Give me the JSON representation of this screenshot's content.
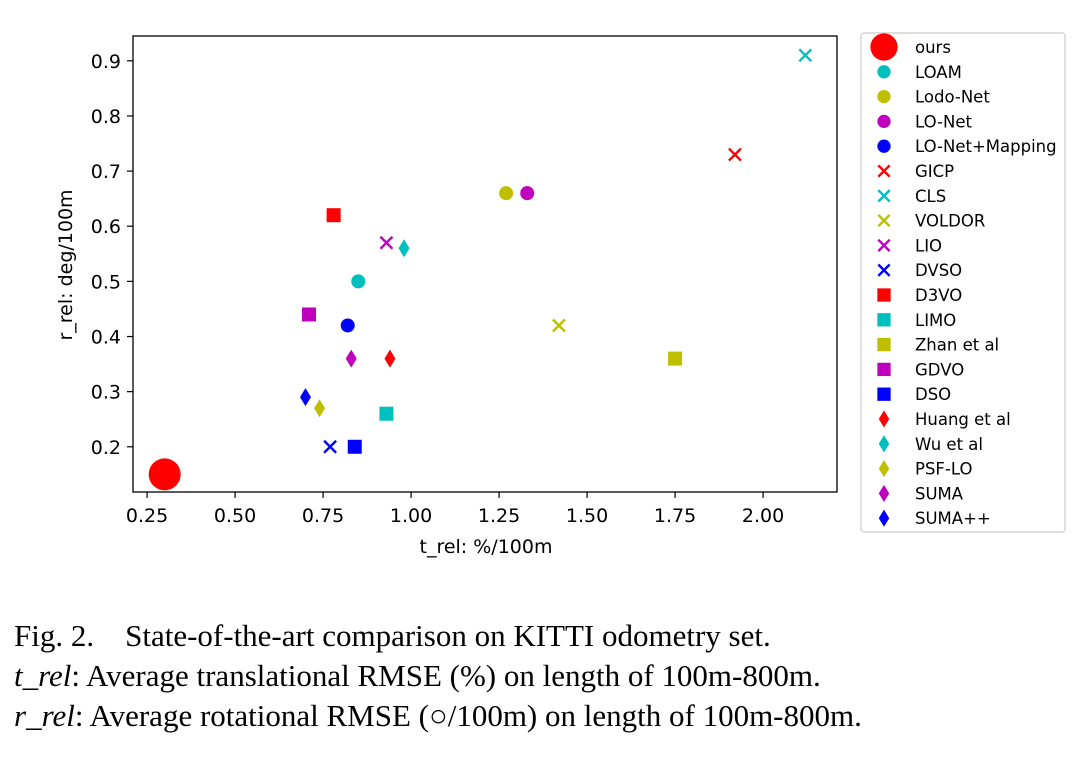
{
  "chart_data": {
    "type": "scatter",
    "title": "",
    "xlabel": "t_rel: %/100m",
    "ylabel": "r_rel: deg/100m",
    "xlim": [
      0.21,
      2.21
    ],
    "ylim": [
      0.118,
      0.945
    ],
    "xticks": [
      0.25,
      0.5,
      0.75,
      1.0,
      1.25,
      1.5,
      1.75,
      2.0
    ],
    "xtick_labels": [
      "0.25",
      "0.50",
      "0.75",
      "1.00",
      "1.25",
      "1.50",
      "1.75",
      "2.00"
    ],
    "yticks": [
      0.2,
      0.3,
      0.4,
      0.5,
      0.6,
      0.7,
      0.8,
      0.9
    ],
    "ytick_labels": [
      "0.2",
      "0.3",
      "0.4",
      "0.5",
      "0.6",
      "0.7",
      "0.8",
      "0.9"
    ],
    "grid": false,
    "legend_position": "outside-right",
    "series": [
      {
        "name": "ours",
        "marker": "circle-large",
        "color": "#ff0000",
        "x": 0.3,
        "y": 0.15
      },
      {
        "name": "LOAM",
        "marker": "circle",
        "color": "#00bfbf",
        "x": 0.85,
        "y": 0.5
      },
      {
        "name": "Lodo-Net",
        "marker": "circle",
        "color": "#bfbf00",
        "x": 1.27,
        "y": 0.66
      },
      {
        "name": "LO-Net",
        "marker": "circle",
        "color": "#bf00bf",
        "x": 1.33,
        "y": 0.66
      },
      {
        "name": "LO-Net+Mapping",
        "marker": "circle",
        "color": "#0000ff",
        "x": 0.82,
        "y": 0.42
      },
      {
        "name": "GICP",
        "marker": "x",
        "color": "#ff0000",
        "x": 1.92,
        "y": 0.73
      },
      {
        "name": "CLS",
        "marker": "x",
        "color": "#00bfbf",
        "x": 2.12,
        "y": 0.91
      },
      {
        "name": "VOLDOR",
        "marker": "x",
        "color": "#bfbf00",
        "x": 1.42,
        "y": 0.42
      },
      {
        "name": "LIO",
        "marker": "x",
        "color": "#bf00bf",
        "x": 0.93,
        "y": 0.57
      },
      {
        "name": "DVSO",
        "marker": "x",
        "color": "#0000ff",
        "x": 0.77,
        "y": 0.2
      },
      {
        "name": "D3VO",
        "marker": "square",
        "color": "#ff0000",
        "x": 0.78,
        "y": 0.62
      },
      {
        "name": "LIMO",
        "marker": "square",
        "color": "#00bfbf",
        "x": 0.93,
        "y": 0.26
      },
      {
        "name": "Zhan et al",
        "marker": "square",
        "color": "#bfbf00",
        "x": 1.75,
        "y": 0.36
      },
      {
        "name": "GDVO",
        "marker": "square",
        "color": "#bf00bf",
        "x": 0.71,
        "y": 0.44
      },
      {
        "name": "DSO",
        "marker": "square",
        "color": "#0000ff",
        "x": 0.84,
        "y": 0.2
      },
      {
        "name": "Huang et al",
        "marker": "diamond",
        "color": "#ff0000",
        "x": 0.94,
        "y": 0.36
      },
      {
        "name": "Wu et al",
        "marker": "diamond",
        "color": "#00bfbf",
        "x": 0.98,
        "y": 0.56
      },
      {
        "name": "PSF-LO",
        "marker": "diamond",
        "color": "#bfbf00",
        "x": 0.74,
        "y": 0.27
      },
      {
        "name": "SUMA",
        "marker": "diamond",
        "color": "#bf00bf",
        "x": 0.83,
        "y": 0.36
      },
      {
        "name": "SUMA++",
        "marker": "diamond",
        "color": "#0000ff",
        "x": 0.7,
        "y": 0.29
      }
    ]
  },
  "caption": {
    "line1_label": "Fig. 2.",
    "line1_text": "State-of-the-art comparison on KITTI odometry set.",
    "line2_var": "t_rel",
    "line2_text": ": Average translational RMSE (%) on length of 100m-800m.",
    "line3_var": "r_rel",
    "line3_text": ": Average rotational RMSE (○/100m) on length of 100m-800m."
  }
}
